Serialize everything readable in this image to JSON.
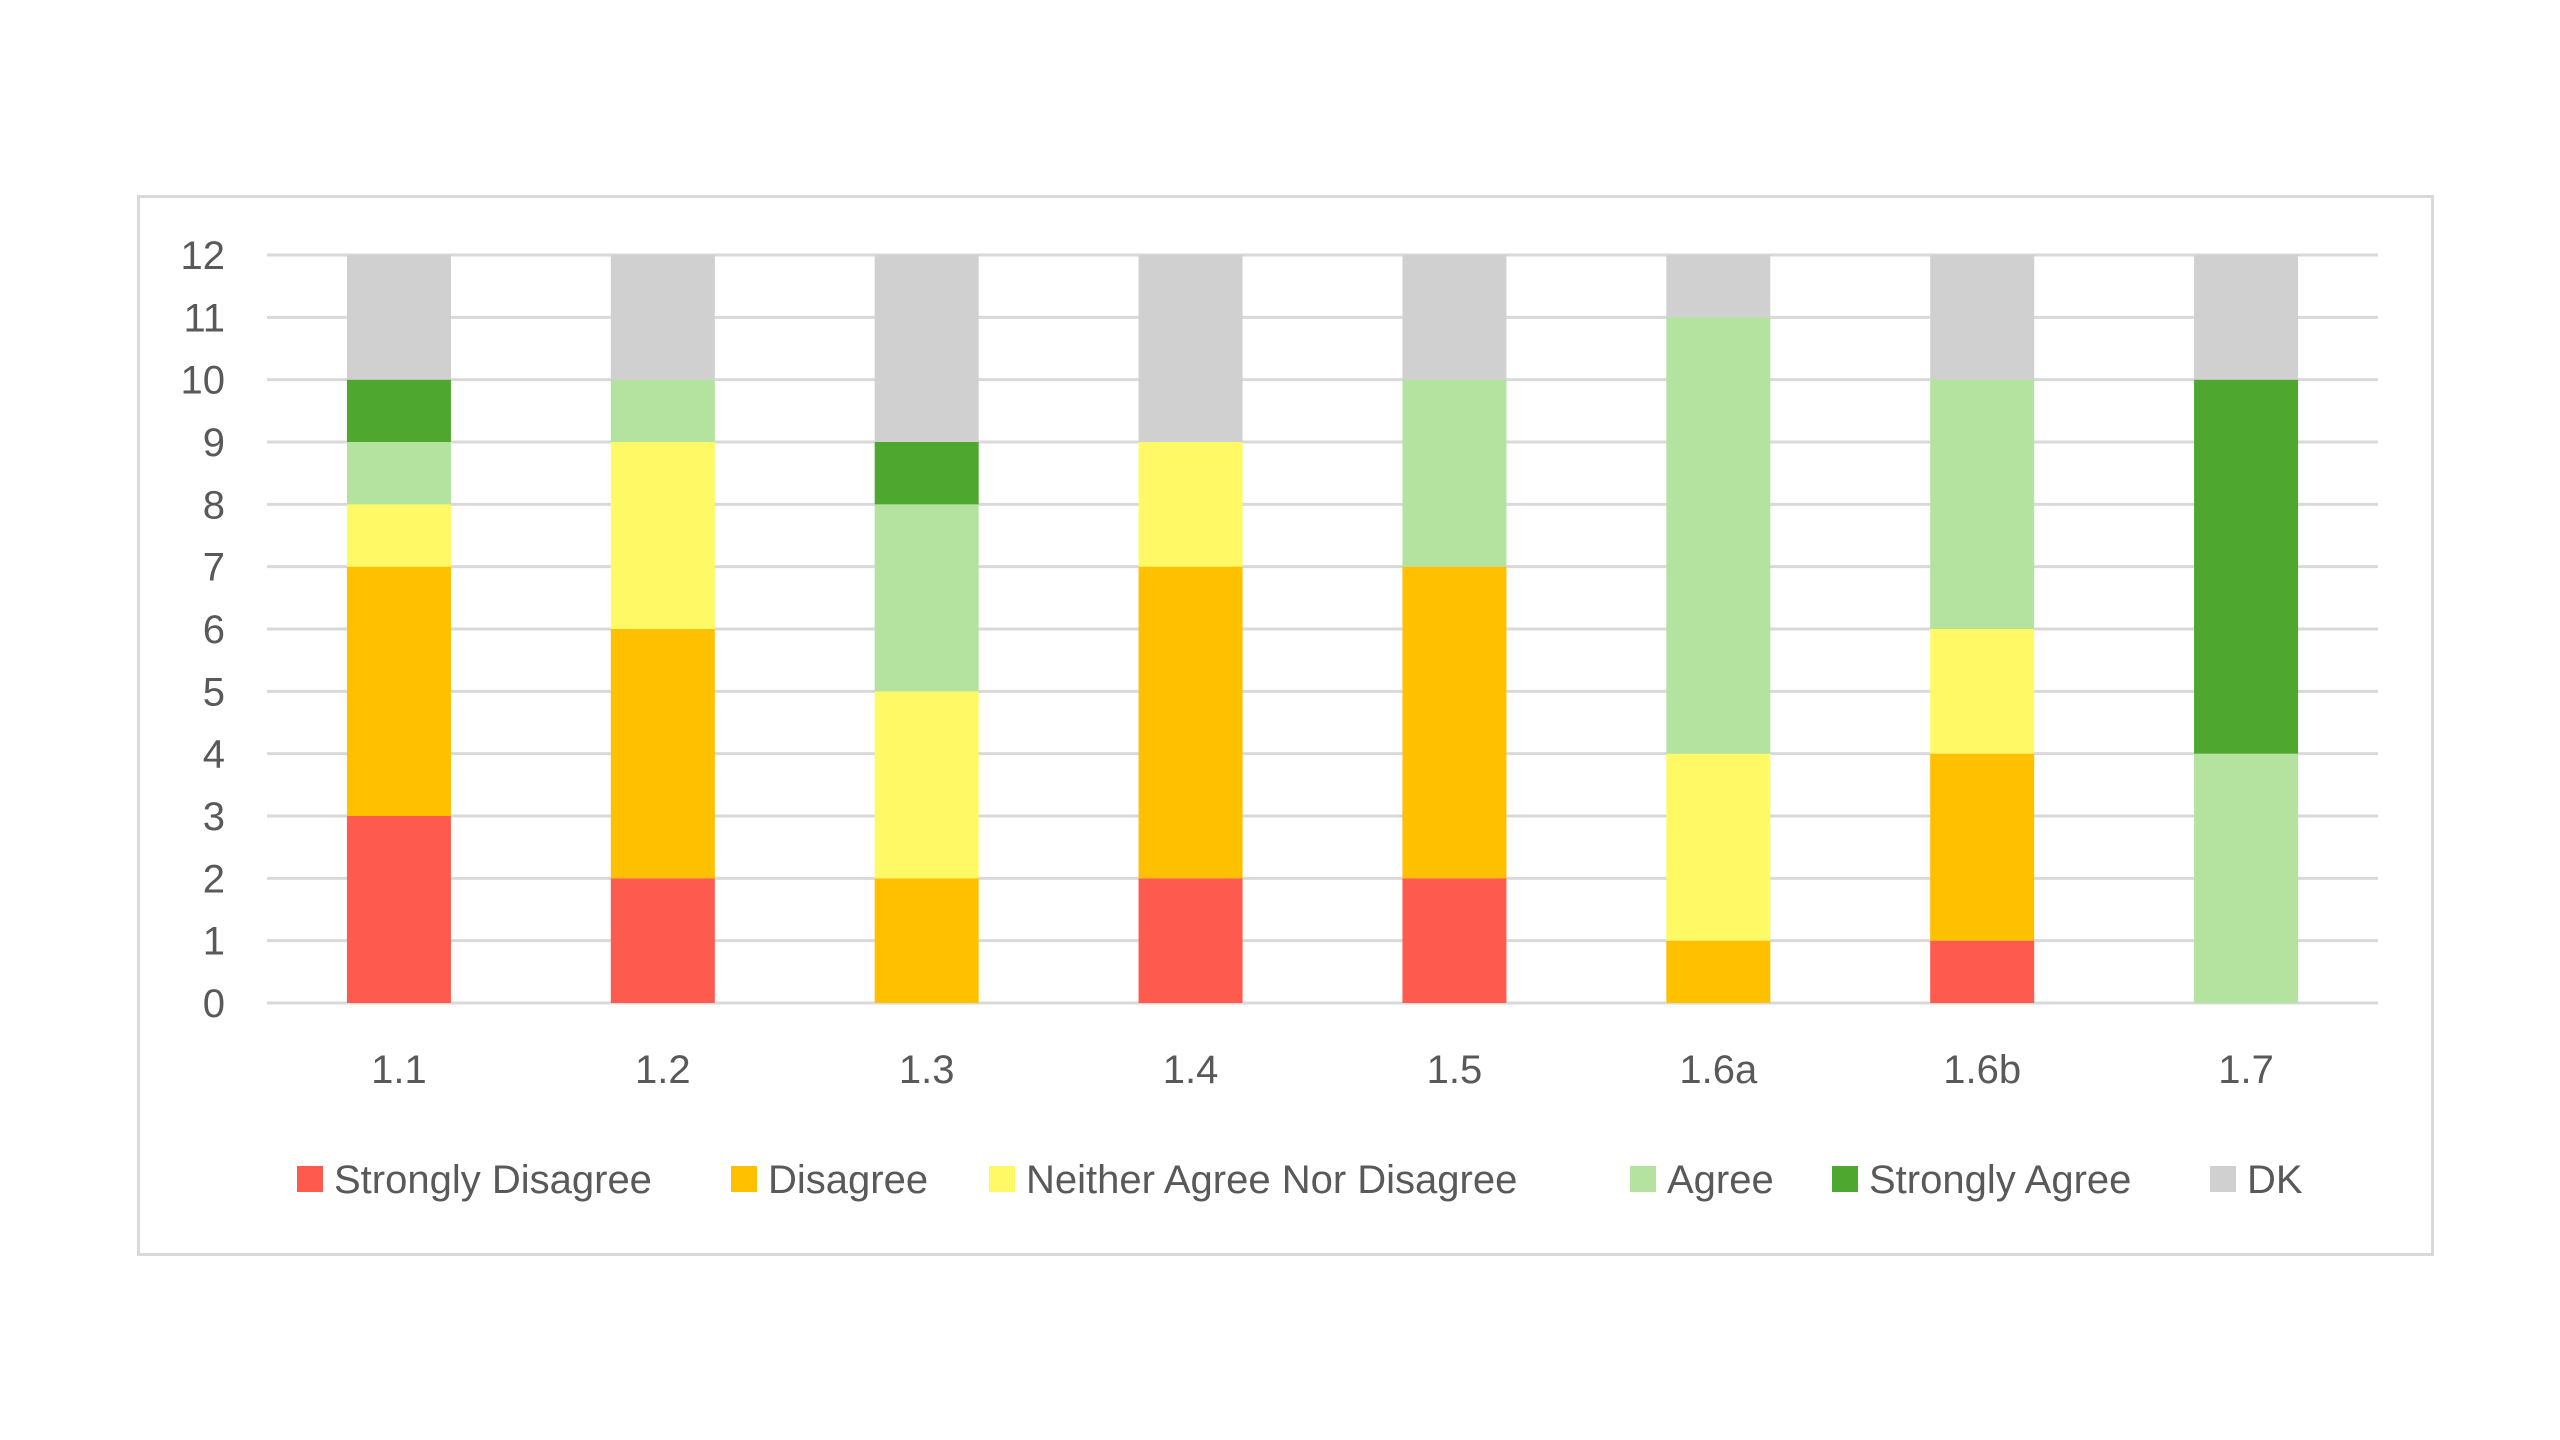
{
  "chart_data": {
    "type": "bar",
    "stacked": true,
    "categories": [
      "1.1",
      "1.2",
      "1.3",
      "1.4",
      "1.5",
      "1.6a",
      "1.6b",
      "1.7"
    ],
    "series": [
      {
        "name": "Strongly Disagree",
        "color": "#ff5a4e",
        "values": [
          3,
          2,
          0,
          2,
          2,
          0,
          1,
          0
        ]
      },
      {
        "name": "Disagree",
        "color": "#ffc000",
        "values": [
          4,
          4,
          2,
          5,
          5,
          1,
          3,
          0
        ]
      },
      {
        "name": "Neither Agree Nor Disagree",
        "color": "#fff966",
        "values": [
          1,
          3,
          3,
          2,
          0,
          3,
          2,
          0
        ]
      },
      {
        "name": "Agree",
        "color": "#b4e3a0",
        "values": [
          1,
          1,
          3,
          0,
          3,
          7,
          4,
          4
        ]
      },
      {
        "name": "Strongly Agree",
        "color": "#4ea72e",
        "values": [
          1,
          0,
          1,
          0,
          0,
          0,
          0,
          6
        ]
      },
      {
        "name": "DK",
        "color": "#d0d0d0",
        "values": [
          2,
          2,
          3,
          3,
          2,
          1,
          2,
          2
        ]
      }
    ],
    "title": "",
    "xlabel": "",
    "ylabel": "",
    "ylim": [
      0,
      12
    ],
    "yticks": [
      "0",
      "1",
      "2",
      "3",
      "4",
      "5",
      "6",
      "7",
      "8",
      "9",
      "10",
      "11",
      "12"
    ],
    "grid": true,
    "legend_position": "bottom",
    "gridline_color": "#d9d9d9"
  }
}
